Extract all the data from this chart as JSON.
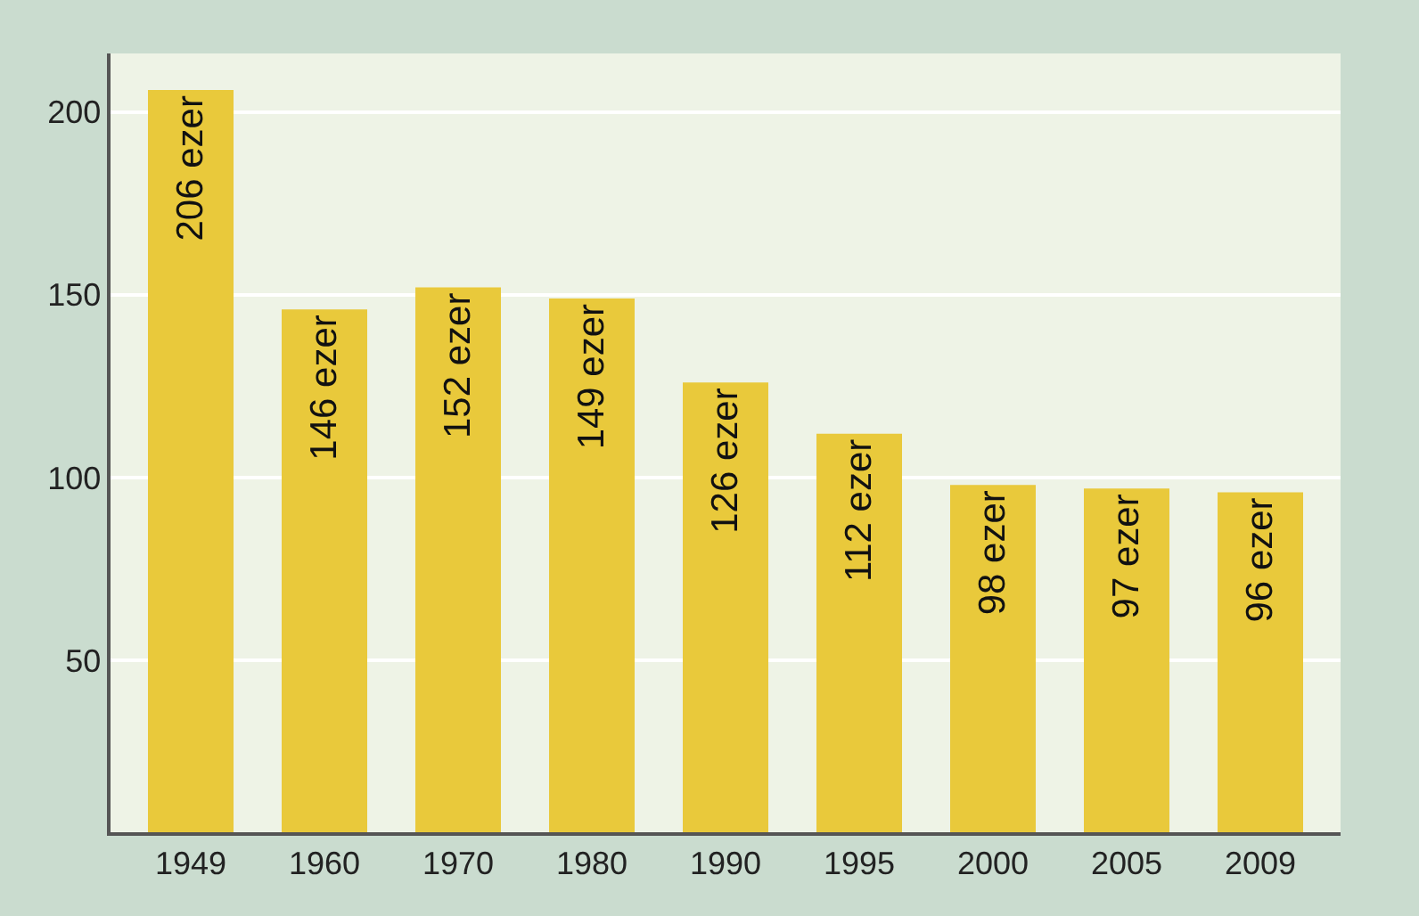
{
  "chart_data": {
    "type": "bar",
    "categories": [
      "1949",
      "1960",
      "1970",
      "1980",
      "1990",
      "1995",
      "2000",
      "2005",
      "2009"
    ],
    "values": [
      206,
      146,
      152,
      149,
      126,
      112,
      98,
      97,
      96
    ],
    "value_labels": [
      "206 ezer",
      "146 ezer",
      "152 ezer",
      "149 ezer",
      "126 ezer",
      "112 ezer",
      "98 ezer",
      "97 ezer",
      "96 ezer"
    ],
    "color": "#e9c93b",
    "ylim": [
      3,
      216
    ],
    "yticks": [
      50,
      100,
      150,
      200
    ],
    "grid": "y",
    "legend": false
  }
}
